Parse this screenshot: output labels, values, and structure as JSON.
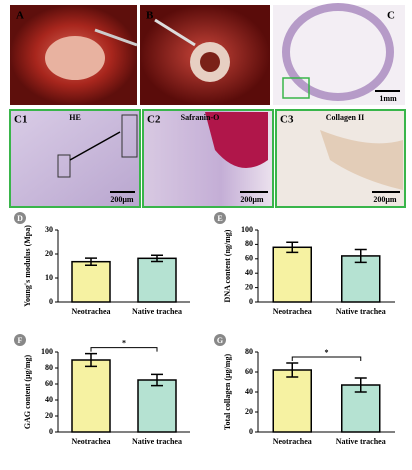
{
  "panels": [
    {
      "label": "A"
    },
    {
      "label": "B"
    },
    {
      "label": "C",
      "scale": "1mm"
    },
    {
      "label": "C1",
      "stain": "HE",
      "scale": "200μm"
    },
    {
      "label": "C2",
      "stain": "Safranin-O",
      "scale": "200μm"
    },
    {
      "label": "C3",
      "stain": "Collagen II",
      "scale": "200μm"
    }
  ],
  "chart_data": [
    {
      "type": "bar",
      "panel_label": "D",
      "y_label": "Young's modulus (Mpa)",
      "categories": [
        "Neotrachea",
        "Native trachea"
      ],
      "values": [
        16.8,
        18.2
      ],
      "errors": [
        1.5,
        1.3
      ],
      "colors": [
        "#f6f2a2",
        "#b5e2d2"
      ],
      "ylim": [
        0,
        30
      ],
      "yticks": [
        0,
        10,
        20,
        30
      ]
    },
    {
      "type": "bar",
      "panel_label": "E",
      "y_label": "DNA content (ng/mg)",
      "categories": [
        "Neotrachea",
        "Native trachea"
      ],
      "values": [
        76,
        64
      ],
      "errors": [
        7,
        9
      ],
      "colors": [
        "#f6f2a2",
        "#b5e2d2"
      ],
      "ylim": [
        0,
        100
      ],
      "yticks": [
        0,
        20,
        40,
        60,
        80,
        100
      ]
    },
    {
      "type": "bar",
      "panel_label": "F",
      "y_label": "GAG content (μg/mg)",
      "categories": [
        "Neotrachea",
        "Native trachea"
      ],
      "values": [
        90,
        65
      ],
      "errors": [
        8,
        7
      ],
      "colors": [
        "#f6f2a2",
        "#b5e2d2"
      ],
      "ylim": [
        0,
        100
      ],
      "yticks": [
        0,
        20,
        40,
        60,
        80,
        100
      ],
      "annotation": "*"
    },
    {
      "type": "bar",
      "panel_label": "G",
      "y_label": "Total collagen (μg/mg)",
      "categories": [
        "Neotrachea",
        "Native trachea"
      ],
      "values": [
        62,
        47
      ],
      "errors": [
        7,
        7
      ],
      "colors": [
        "#f6f2a2",
        "#b5e2d2"
      ],
      "ylim": [
        0,
        80
      ],
      "yticks": [
        0,
        20,
        40,
        60,
        80
      ],
      "annotation": "*"
    }
  ]
}
